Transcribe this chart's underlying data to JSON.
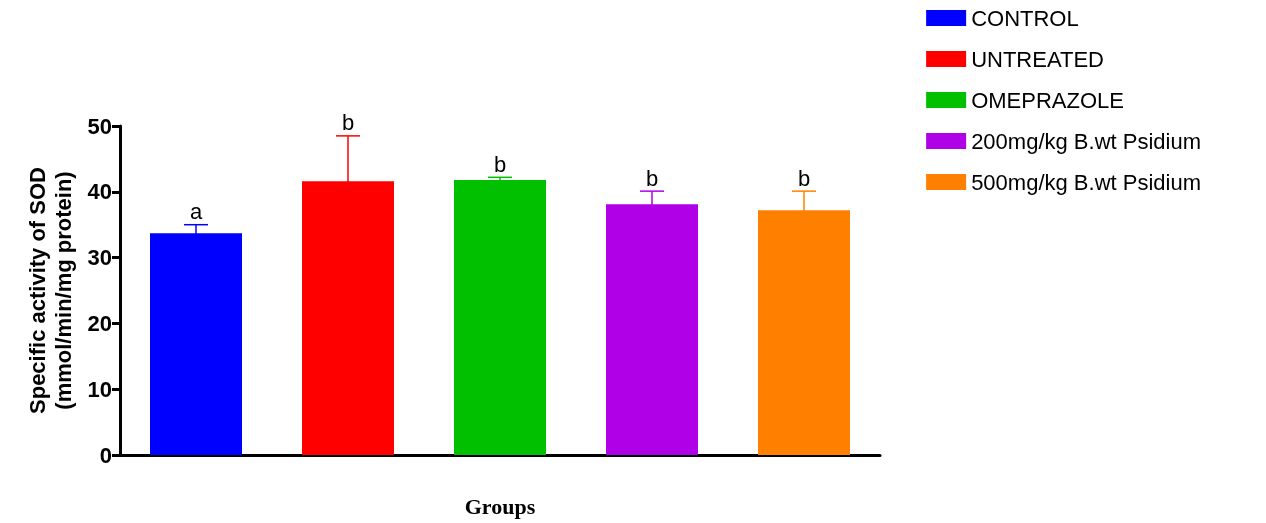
{
  "chart_data": {
    "type": "bar",
    "xlabel": "Groups",
    "ylabel": "Specific activity of SOD\n(mmol/min/mg protein)",
    "categories": [
      null,
      null,
      null,
      null,
      null
    ],
    "series": [
      {
        "name": "CONTROL",
        "color": "#0000ff",
        "values": [
          33.7,
          null,
          null,
          null,
          null
        ],
        "errors": [
          1.3,
          null,
          null,
          null,
          null
        ],
        "value_labels": [
          "a",
          null,
          null,
          null,
          null
        ]
      },
      {
        "name": "UNTREATED",
        "color": "#ff0000",
        "values": [
          null,
          41.6,
          null,
          null,
          null
        ],
        "errors": [
          null,
          6.9,
          null,
          null,
          null
        ],
        "value_labels": [
          null,
          "b",
          null,
          null,
          null
        ]
      },
      {
        "name": "OMEPRAZOLE",
        "color": "#00c000",
        "values": [
          null,
          null,
          41.8,
          null,
          null
        ],
        "errors": [
          null,
          null,
          0.4,
          null,
          null
        ],
        "value_labels": [
          null,
          null,
          "b",
          null,
          null
        ]
      },
      {
        "name": "200mg/kg B.wt Psidium",
        "color": "#b000e8",
        "values": [
          null,
          null,
          null,
          38.1,
          null
        ],
        "errors": [
          null,
          null,
          null,
          2.0,
          null
        ],
        "value_labels": [
          null,
          null,
          null,
          "b",
          null
        ]
      },
      {
        "name": "500mg/kg B.wt Psidium",
        "color": "#ff8000",
        "values": [
          null,
          null,
          null,
          null,
          37.2
        ],
        "errors": [
          null,
          null,
          null,
          null,
          2.9
        ],
        "value_labels": [
          null,
          null,
          null,
          null,
          "b"
        ]
      }
    ],
    "ylim": [
      0,
      50
    ],
    "yticks": [
      0,
      10,
      20,
      30,
      40,
      50
    ],
    "grid": false,
    "legend": "top right"
  }
}
